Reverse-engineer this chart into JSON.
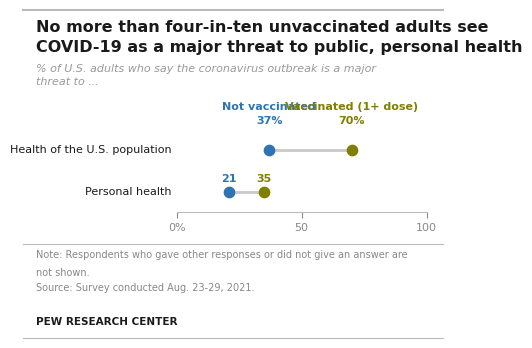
{
  "title_line1": "No more than four-in-ten unvaccinated adults see",
  "title_line2": "COVID-19 as a major threat to public, personal health",
  "subtitle": "% of U.S. adults who say the coronavirus outbreak is a major\nthreat to ...",
  "categories": [
    "Health of the U.S. population",
    "Personal health"
  ],
  "not_vaccinated": [
    37,
    21
  ],
  "vaccinated": [
    70,
    35
  ],
  "not_vaccinated_color": "#2E74B5",
  "vaccinated_color": "#7F7F00",
  "connector_color": "#C9C9C9",
  "legend_not_vaccinated": "Not vaccinated",
  "legend_vaccinated": "Vaccinated (1+ dose)",
  "xlim": [
    0,
    100
  ],
  "xticks": [
    0,
    50,
    100
  ],
  "xticklabels": [
    "0%",
    "50",
    "100"
  ],
  "note_line1": "Note: Respondents who gave other responses or did not give an answer are",
  "note_line2": "not shown.",
  "note_line3": "Source: Survey conducted Aug. 23-29, 2021.",
  "source_label": "PEW RESEARCH CENTER",
  "bg_color": "#ffffff",
  "text_dark": "#1a1a1a",
  "text_gray": "#888888"
}
